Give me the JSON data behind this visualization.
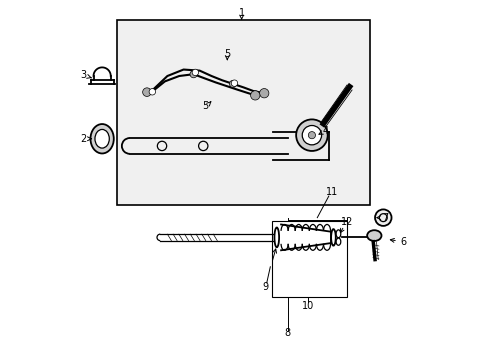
{
  "bg_color": "#ffffff",
  "black": "#000000",
  "gray": "#aaaaaa",
  "light_gray": "#eeeeee",
  "mid_gray": "#d0d0d0",
  "box_fill": "#f0f0f0",
  "figsize": [
    4.89,
    3.6
  ],
  "dpi": 100,
  "lw": 0.9,
  "lw2": 1.3,
  "fontsize": 7
}
